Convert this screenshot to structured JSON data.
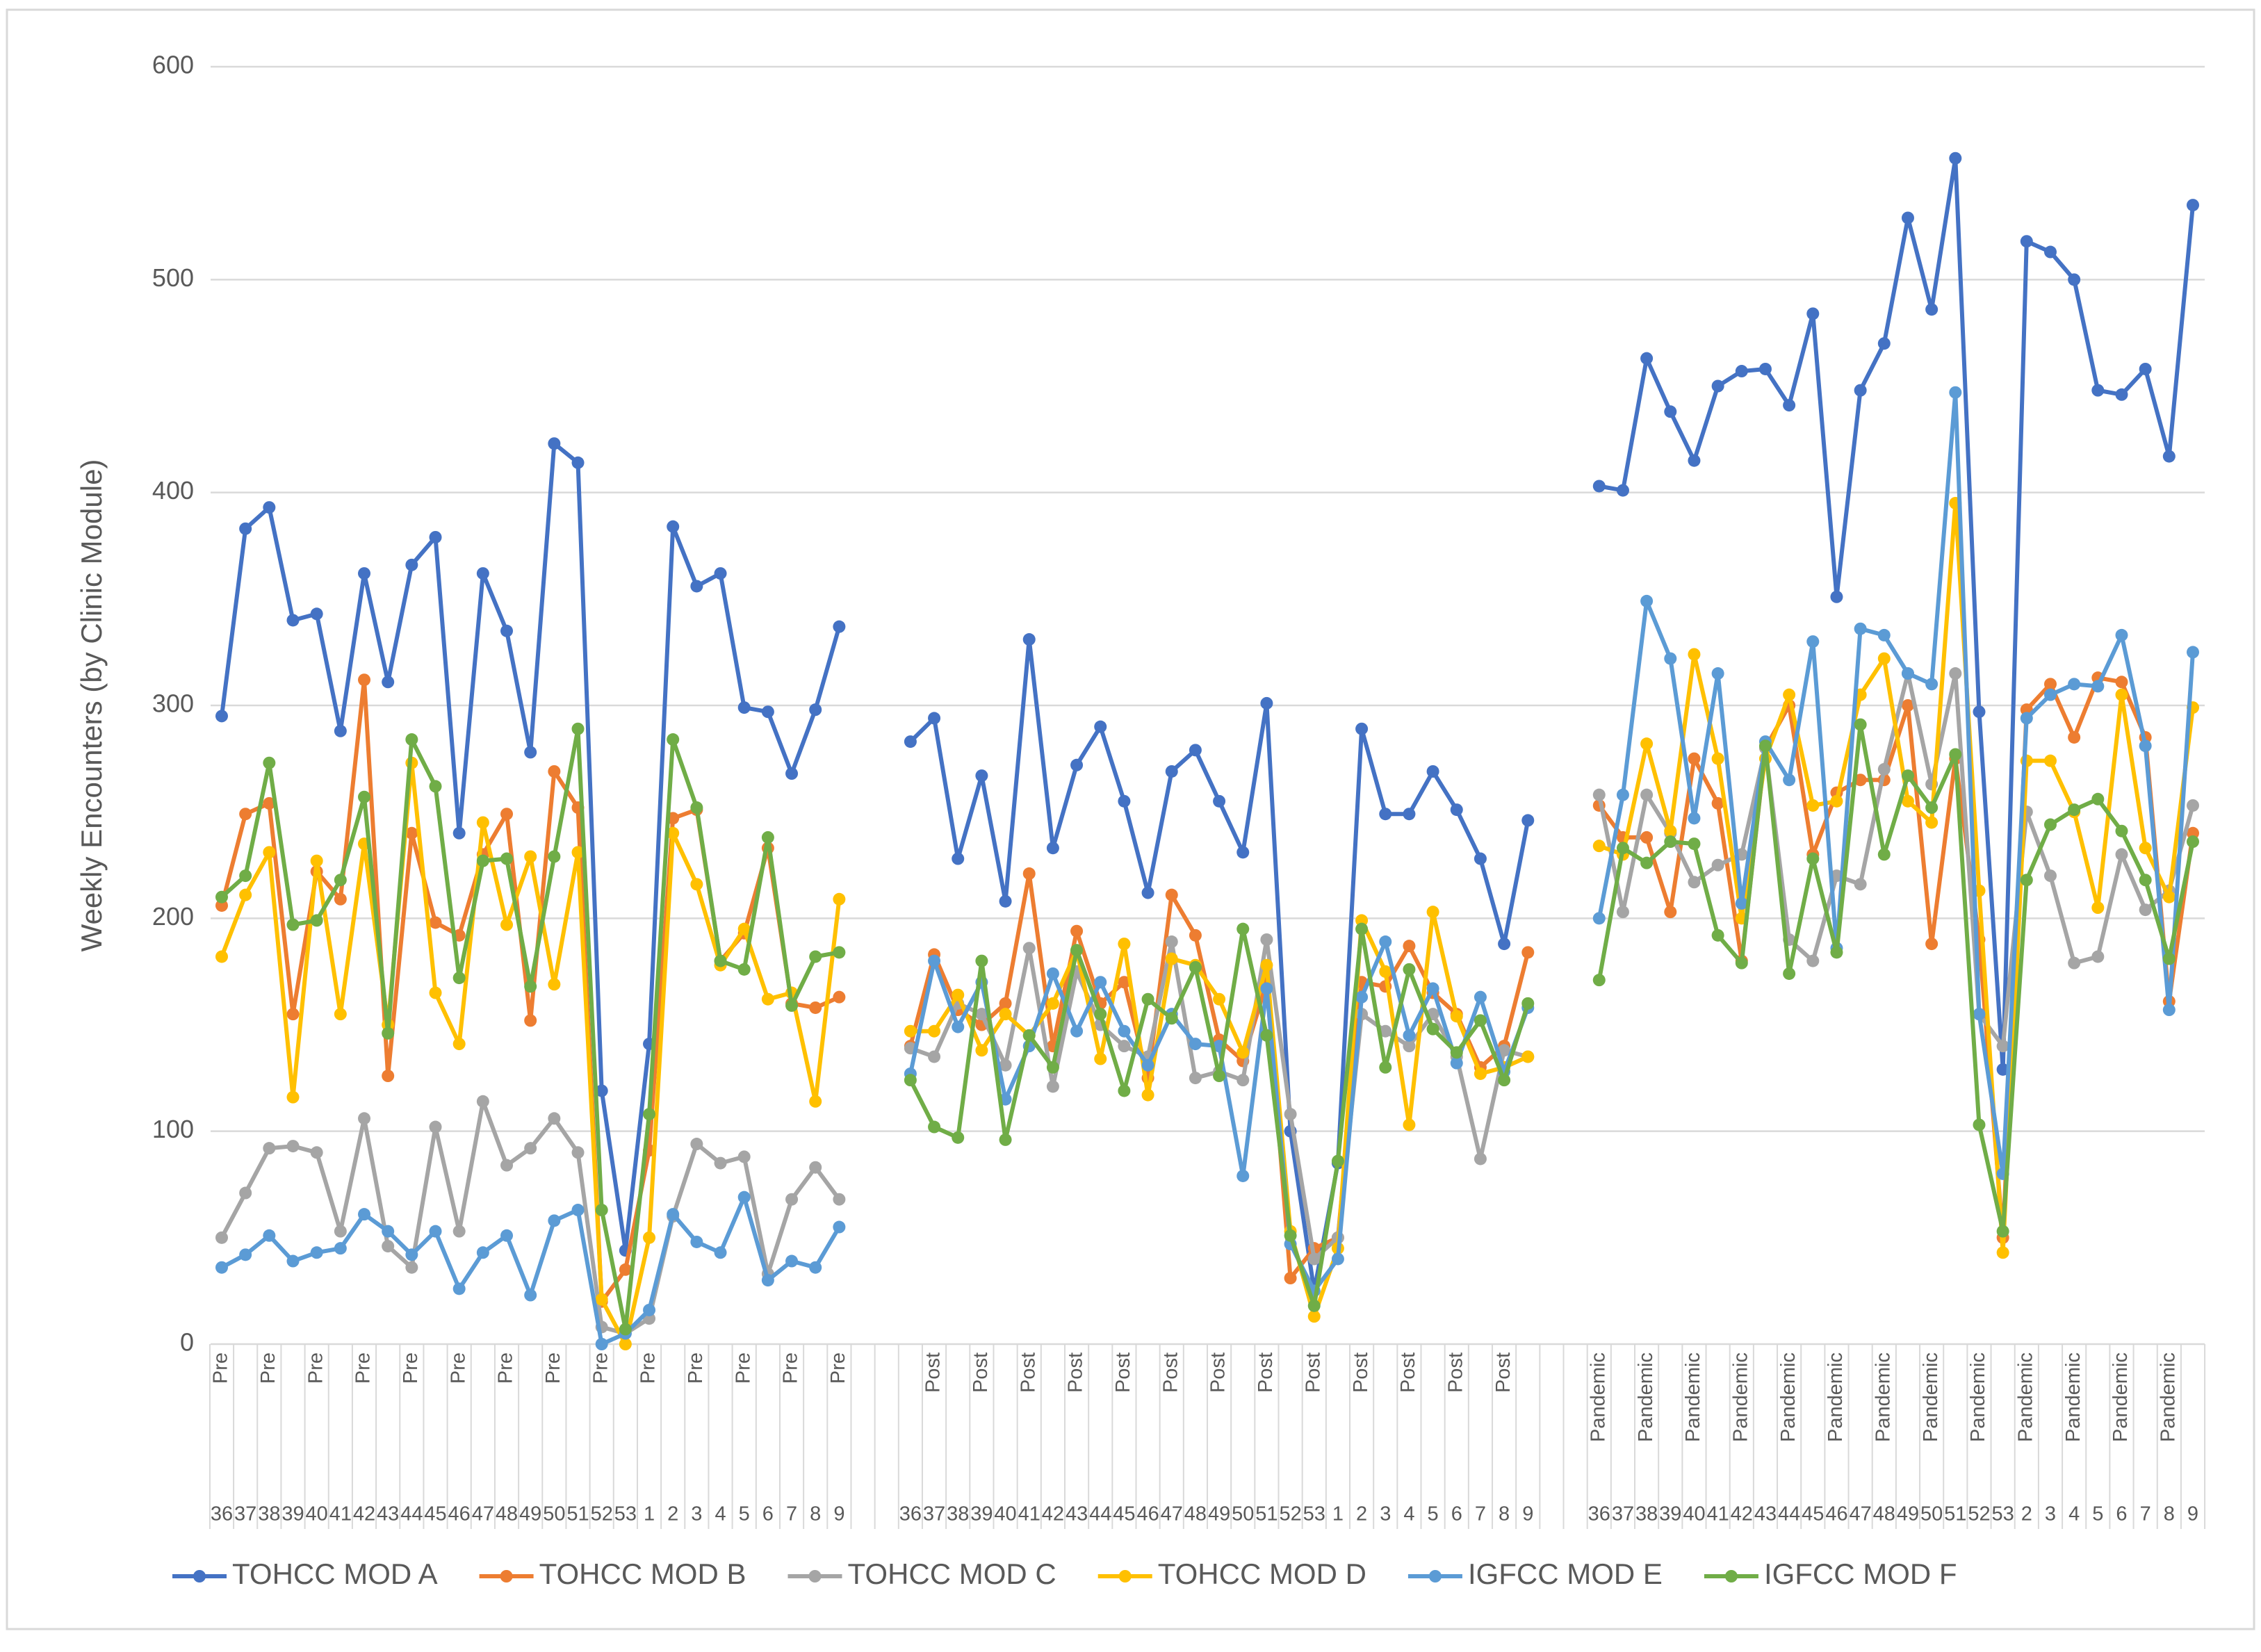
{
  "chart_data": {
    "type": "line",
    "y_label": "Weekly Encounters (by Clinic Module)",
    "ylim": [
      0,
      600
    ],
    "yticks": [
      0,
      100,
      200,
      300,
      400,
      500,
      600
    ],
    "grid": true,
    "legend": "bottom",
    "categories": [
      36,
      37,
      38,
      39,
      40,
      41,
      42,
      43,
      44,
      45,
      46,
      47,
      48,
      49,
      50,
      51,
      52,
      53,
      1,
      2,
      3,
      4,
      5,
      6,
      7,
      8,
      9,
      null,
      null,
      36,
      37,
      38,
      39,
      40,
      41,
      42,
      43,
      44,
      45,
      46,
      47,
      48,
      49,
      50,
      51,
      52,
      53,
      1,
      2,
      3,
      4,
      5,
      6,
      7,
      8,
      9,
      null,
      null,
      36,
      37,
      38,
      39,
      40,
      41,
      42,
      43,
      44,
      45,
      46,
      47,
      48,
      49,
      50,
      51,
      52,
      53,
      2,
      3,
      4,
      5,
      6,
      7,
      8,
      9
    ],
    "periods": [
      "Pre",
      null,
      "Pre",
      null,
      "Pre",
      null,
      "Pre",
      null,
      "Pre",
      null,
      "Pre",
      null,
      "Pre",
      null,
      "Pre",
      null,
      "Pre",
      null,
      "Pre",
      null,
      "Pre",
      null,
      "Pre",
      null,
      "Pre",
      null,
      "Pre",
      null,
      null,
      null,
      "Post",
      null,
      "Post",
      null,
      "Post",
      null,
      "Post",
      null,
      "Post",
      null,
      "Post",
      null,
      "Post",
      null,
      "Post",
      null,
      "Post",
      null,
      "Post",
      null,
      "Post",
      null,
      "Post",
      null,
      "Post",
      null,
      null,
      null,
      "Pandemic",
      null,
      "Pandemic",
      null,
      "Pandemic",
      null,
      "Pandemic",
      null,
      "Pandemic",
      null,
      "Pandemic",
      null,
      "Pandemic",
      null,
      "Pandemic",
      null,
      "Pandemic",
      null,
      "Pandemic",
      null,
      "Pandemic",
      null,
      "Pandemic",
      null,
      "Pandemic",
      null
    ],
    "series": [
      {
        "name": "TOHCC MOD A",
        "color": "#4472c4",
        "values": [
          295,
          383,
          393,
          340,
          343,
          288,
          362,
          311,
          366,
          379,
          240,
          362,
          335,
          278,
          423,
          414,
          119,
          44,
          141,
          384,
          356,
          362,
          299,
          297,
          268,
          298,
          337,
          null,
          null,
          283,
          294,
          228,
          267,
          208,
          331,
          233,
          272,
          290,
          255,
          212,
          269,
          279,
          255,
          231,
          301,
          100,
          25,
          85,
          289,
          249,
          249,
          269,
          251,
          228,
          188,
          246,
          null,
          null,
          403,
          401,
          463,
          438,
          415,
          450,
          457,
          458,
          441,
          484,
          351,
          448,
          470,
          529,
          486,
          557,
          297,
          129,
          518,
          513,
          500,
          448,
          446,
          458,
          417,
          535
        ]
      },
      {
        "name": "TOHCC MOD B",
        "color": "#ed7d31",
        "values": [
          206,
          249,
          254,
          155,
          222,
          209,
          312,
          126,
          240,
          198,
          192,
          230,
          249,
          152,
          269,
          252,
          20,
          35,
          91,
          247,
          251,
          180,
          193,
          233,
          160,
          158,
          163,
          null,
          null,
          140,
          183,
          157,
          150,
          160,
          221,
          140,
          194,
          160,
          170,
          125,
          211,
          192,
          143,
          133,
          170,
          31,
          45,
          50,
          170,
          168,
          187,
          165,
          155,
          130,
          140,
          184,
          null,
          null,
          253,
          238,
          238,
          203,
          275,
          254,
          180,
          280,
          300,
          230,
          259,
          265,
          265,
          300,
          188,
          275,
          190,
          50,
          298,
          310,
          285,
          313,
          311,
          285,
          161,
          240
        ]
      },
      {
        "name": "TOHCC MOD C",
        "color": "#a5a5a5",
        "values": [
          50,
          71,
          92,
          93,
          90,
          53,
          106,
          46,
          36,
          102,
          53,
          114,
          84,
          92,
          106,
          90,
          8,
          5,
          12,
          60,
          94,
          85,
          88,
          33,
          68,
          83,
          68,
          null,
          null,
          139,
          135,
          160,
          155,
          131,
          186,
          121,
          175,
          150,
          140,
          135,
          189,
          125,
          128,
          124,
          190,
          108,
          40,
          50,
          155,
          147,
          140,
          155,
          135,
          87,
          138,
          135,
          null,
          null,
          258,
          203,
          258,
          240,
          217,
          225,
          230,
          280,
          190,
          180,
          220,
          216,
          270,
          315,
          263,
          315,
          155,
          140,
          250,
          220,
          179,
          182,
          230,
          204,
          213,
          253
        ]
      },
      {
        "name": "TOHCC MOD D",
        "color": "#ffc000",
        "values": [
          182,
          211,
          231,
          116,
          227,
          155,
          235,
          150,
          273,
          165,
          141,
          245,
          197,
          229,
          169,
          231,
          21,
          0,
          50,
          240,
          216,
          178,
          195,
          162,
          165,
          114,
          209,
          null,
          null,
          147,
          147,
          164,
          138,
          155,
          145,
          160,
          185,
          134,
          188,
          117,
          181,
          178,
          162,
          137,
          178,
          53,
          13,
          45,
          199,
          175,
          103,
          203,
          154,
          127,
          130,
          135,
          null,
          null,
          234,
          230,
          282,
          241,
          324,
          275,
          200,
          275,
          305,
          253,
          255,
          305,
          322,
          255,
          245,
          395,
          213,
          43,
          274,
          274,
          250,
          205,
          305,
          233,
          210,
          299
        ]
      },
      {
        "name": "IGFCC MOD E",
        "color": "#5b9bd5",
        "values": [
          36,
          42,
          51,
          39,
          43,
          45,
          61,
          53,
          42,
          53,
          26,
          43,
          51,
          23,
          58,
          63,
          0,
          5,
          16,
          61,
          48,
          43,
          69,
          30,
          39,
          36,
          55,
          null,
          null,
          127,
          180,
          149,
          170,
          115,
          140,
          174,
          147,
          170,
          147,
          131,
          155,
          141,
          140,
          79,
          167,
          47,
          25,
          40,
          163,
          189,
          145,
          167,
          132,
          163,
          128,
          158,
          null,
          null,
          200,
          258,
          349,
          322,
          247,
          315,
          207,
          283,
          265,
          330,
          186,
          336,
          333,
          315,
          310,
          447,
          155,
          80,
          294,
          305,
          310,
          309,
          333,
          281,
          157,
          325
        ]
      },
      {
        "name": "IGFCC MOD F",
        "color": "#70ad47",
        "values": [
          210,
          220,
          273,
          197,
          199,
          218,
          257,
          146,
          284,
          262,
          172,
          227,
          228,
          168,
          229,
          289,
          63,
          7,
          108,
          284,
          252,
          180,
          176,
          238,
          159,
          182,
          184,
          null,
          null,
          124,
          102,
          97,
          180,
          96,
          145,
          130,
          185,
          155,
          119,
          162,
          153,
          177,
          126,
          195,
          145,
          51,
          18,
          86,
          195,
          130,
          176,
          148,
          137,
          152,
          124,
          160,
          null,
          null,
          171,
          233,
          226,
          236,
          235,
          192,
          179,
          281,
          174,
          228,
          184,
          291,
          230,
          267,
          252,
          277,
          103,
          53,
          218,
          244,
          251,
          256,
          241,
          218,
          181,
          236
        ]
      }
    ]
  }
}
